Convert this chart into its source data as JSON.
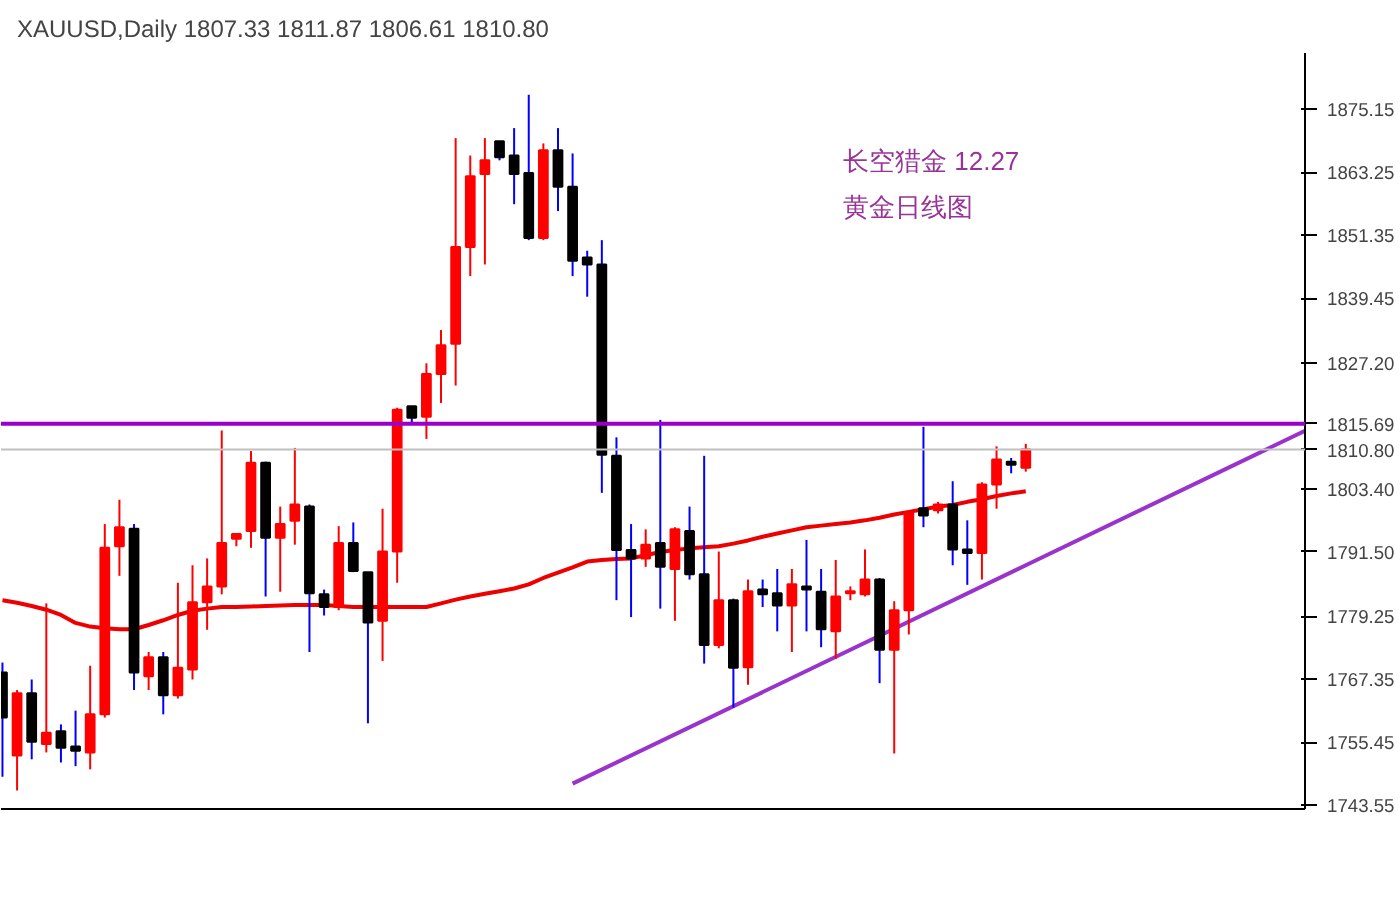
{
  "chart_data": {
    "type": "candlestick",
    "title": "XAUUSD,Daily  1807.33 1811.87 1806.61 1810.80",
    "annotations": [
      "长空猎金  12.27",
      "黄金日线图"
    ],
    "categories": [
      null,
      null,
      null,
      null,
      null,
      null,
      null,
      null,
      null,
      null,
      null,
      null,
      null,
      null,
      null,
      null,
      null,
      null,
      null,
      null,
      null,
      null,
      null,
      null,
      null,
      null,
      null,
      null,
      null,
      null,
      null,
      null,
      null,
      null,
      null,
      null,
      null,
      null,
      null,
      null,
      null,
      null,
      null,
      null,
      null,
      null,
      null,
      null,
      null,
      null,
      null,
      null,
      null,
      null,
      null,
      null,
      null,
      null,
      null,
      null,
      null,
      null,
      null,
      null,
      null,
      null,
      null,
      null,
      null,
      null,
      null
    ],
    "ohlc": [
      [
        1768.6,
        1770.5,
        1748.9,
        1760.1
      ],
      [
        1752.9,
        1765.3,
        1746.3,
        1764.7
      ],
      [
        1764.7,
        1767.3,
        1752.2,
        1755.5
      ],
      [
        1755.1,
        1781.7,
        1753.5,
        1757.2
      ],
      [
        1757.5,
        1758.8,
        1751.6,
        1754.4
      ],
      [
        1754.6,
        1761.4,
        1750.9,
        1753.8
      ],
      [
        1753.5,
        1769.9,
        1750.3,
        1760.7
      ],
      [
        1760.7,
        1796.7,
        1760.1,
        1792.2
      ],
      [
        1792.5,
        1801.3,
        1786.9,
        1796.1
      ],
      [
        1795.8,
        1796.7,
        1765.3,
        1768.6
      ],
      [
        1767.9,
        1772.5,
        1765.3,
        1771.5
      ],
      [
        1771.5,
        1772.5,
        1760.7,
        1764.3
      ],
      [
        1764.3,
        1785.6,
        1763.7,
        1769.5
      ],
      [
        1769.2,
        1788.9,
        1767.3,
        1781.9
      ],
      [
        1781.9,
        1790.2,
        1776.7,
        1784.9
      ],
      [
        1784.9,
        1814.4,
        1783.4,
        1793.1
      ],
      [
        1793.9,
        1795.0,
        1792.5,
        1794.8
      ],
      [
        1795.4,
        1810.5,
        1792.2,
        1808.3
      ],
      [
        1808.3,
        1808.5,
        1783.0,
        1794.1
      ],
      [
        1794.1,
        1800.0,
        1783.9,
        1796.7
      ],
      [
        1797.3,
        1811.1,
        1792.8,
        1800.4
      ],
      [
        1800.0,
        1800.4,
        1772.5,
        1783.6
      ],
      [
        1783.4,
        1784.3,
        1779.4,
        1781.0
      ],
      [
        1781.0,
        1796.3,
        1780.4,
        1793.1
      ],
      [
        1793.1,
        1797.0,
        1787.6,
        1787.8
      ],
      [
        1787.6,
        1787.6,
        1759.0,
        1778.1
      ],
      [
        1778.4,
        1799.6,
        1770.8,
        1791.5
      ],
      [
        1791.5,
        1818.7,
        1785.6,
        1818.3
      ],
      [
        1819.0,
        1819.0,
        1815.5,
        1816.8
      ],
      [
        1817.0,
        1827.1,
        1812.8,
        1825.1
      ],
      [
        1825.1,
        1833.4,
        1819.6,
        1830.5
      ],
      [
        1830.8,
        1869.7,
        1822.9,
        1849.1
      ],
      [
        1849.1,
        1866.4,
        1843.6,
        1862.5
      ],
      [
        1862.9,
        1869.7,
        1845.8,
        1865.5
      ],
      [
        1869.1,
        1869.1,
        1865.5,
        1866.1
      ],
      [
        1866.4,
        1871.6,
        1857.2,
        1862.9
      ],
      [
        1863.1,
        1877.9,
        1850.4,
        1850.8
      ],
      [
        1850.8,
        1868.7,
        1850.4,
        1867.4
      ],
      [
        1867.4,
        1871.6,
        1855.9,
        1860.5
      ],
      [
        1860.5,
        1866.8,
        1843.6,
        1846.5
      ],
      [
        1847.1,
        1848.4,
        1839.7,
        1845.8
      ],
      [
        1845.8,
        1850.4,
        1802.6,
        1809.8
      ],
      [
        1809.6,
        1813.1,
        1782.3,
        1791.8
      ],
      [
        1791.8,
        1796.7,
        1779.1,
        1790.2
      ],
      [
        1790.2,
        1795.7,
        1788.6,
        1792.8
      ],
      [
        1793.1,
        1816.4,
        1780.7,
        1788.6
      ],
      [
        1788.2,
        1796.1,
        1778.4,
        1795.7
      ],
      [
        1795.4,
        1800.0,
        1786.2,
        1787.2
      ],
      [
        1787.2,
        1809.6,
        1770.3,
        1773.8
      ],
      [
        1773.8,
        1791.5,
        1773.2,
        1782.3
      ],
      [
        1782.3,
        1782.6,
        1762.0,
        1769.5
      ],
      [
        1769.6,
        1786.2,
        1766.3,
        1784.0
      ],
      [
        1784.3,
        1786.2,
        1781.0,
        1783.4
      ],
      [
        1783.6,
        1788.2,
        1776.4,
        1781.3
      ],
      [
        1781.3,
        1788.2,
        1772.5,
        1785.3
      ],
      [
        1784.9,
        1793.7,
        1776.4,
        1784.3
      ],
      [
        1783.9,
        1788.2,
        1773.4,
        1776.8
      ],
      [
        1776.4,
        1789.9,
        1771.2,
        1783.0
      ],
      [
        1783.6,
        1784.9,
        1782.3,
        1784.0
      ],
      [
        1783.4,
        1791.9,
        1783.0,
        1786.2
      ],
      [
        1786.2,
        1786.5,
        1766.6,
        1772.9
      ],
      [
        1772.9,
        1782.1,
        1753.3,
        1780.4
      ],
      [
        1780.4,
        1799.3,
        1775.8,
        1798.7
      ],
      [
        1799.7,
        1815.1,
        1796.1,
        1798.3
      ],
      [
        1799.3,
        1800.9,
        1798.7,
        1800.4
      ],
      [
        1800.4,
        1804.8,
        1788.9,
        1791.9
      ],
      [
        1791.9,
        1797.4,
        1785.2,
        1791.2
      ],
      [
        1791.2,
        1804.6,
        1786.2,
        1804.2
      ],
      [
        1804.2,
        1811.4,
        1799.6,
        1808.9
      ],
      [
        1808.5,
        1809.2,
        1806.3,
        1807.9
      ],
      [
        1807.33,
        1811.87,
        1806.61,
        1810.8
      ]
    ],
    "colors": [
      "#000000",
      "#ff0000",
      "#000000",
      "#ff0000",
      "#000000",
      "#000000",
      "#ff0000",
      "#ff0000",
      "#ff0000",
      "#000000",
      "#ff0000",
      "#000000",
      "#ff0000",
      "#ff0000",
      "#ff0000",
      "#ff0000",
      "#ff0000",
      "#ff0000",
      "#000000",
      "#ff0000",
      "#ff0000",
      "#000000",
      "#000000",
      "#ff0000",
      "#000000",
      "#000000",
      "#ff0000",
      "#ff0000",
      "#000000",
      "#ff0000",
      "#ff0000",
      "#ff0000",
      "#ff0000",
      "#ff0000",
      "#000000",
      "#000000",
      "#000000",
      "#ff0000",
      "#000000",
      "#000000",
      "#000000",
      "#000000",
      "#000000",
      "#000000",
      "#ff0000",
      "#000000",
      "#ff0000",
      "#000000",
      "#000000",
      "#ff0000",
      "#000000",
      "#ff0000",
      "#000000",
      "#000000",
      "#ff0000",
      "#000000",
      "#000000",
      "#ff0000",
      "#ff0000",
      "#ff0000",
      "#000000",
      "#ff0000",
      "#ff0000",
      "#000000",
      "#ff0000",
      "#000000",
      "#000000",
      "#ff0000",
      "#ff0000",
      "#000000",
      "#ff0000"
    ],
    "series": [
      {
        "type": "line",
        "color": "#ee0000",
        "values": [
          1782.3,
          1781.8,
          1781.2,
          1780.5,
          1779.5,
          1778.0,
          1777.3,
          1777.0,
          1776.8,
          1776.8,
          1777.6,
          1778.5,
          1779.5,
          1780.3,
          1780.7,
          1781.0,
          1781.0,
          1781.1,
          1781.2,
          1781.3,
          1781.4,
          1781.4,
          1781.4,
          1781.2,
          1781.0,
          1781.0,
          1781.0,
          1781.0,
          1781.0,
          1781.0,
          1781.7,
          1782.4,
          1783.0,
          1783.5,
          1784.0,
          1784.5,
          1785.3,
          1786.5,
          1787.5,
          1788.5,
          1789.6,
          1789.9,
          1790.1,
          1790.2,
          1790.8,
          1791.4,
          1791.8,
          1792.1,
          1792.3,
          1792.5,
          1793.0,
          1793.6,
          1794.3,
          1794.9,
          1795.5,
          1796.1,
          1796.4,
          1796.7,
          1797.0,
          1797.4,
          1797.9,
          1798.5,
          1799.0,
          1799.5,
          1800.0,
          1800.3,
          1800.9,
          1801.4,
          1802.0,
          1802.5,
          1802.9
        ]
      },
      {
        "type": "line",
        "color": "#9933cc",
        "values": [
          null,
          null,
          null,
          null,
          null,
          null,
          null,
          null,
          null,
          null,
          null,
          null,
          null,
          null,
          null,
          null,
          null,
          null,
          null,
          null,
          null,
          null,
          null,
          null,
          null,
          null,
          null,
          null,
          null,
          null,
          null,
          null,
          null,
          null,
          null,
          null,
          null,
          null,
          null,
          1747.6,
          null,
          null,
          null,
          null,
          null,
          null,
          null,
          null,
          null,
          null,
          null,
          null,
          null,
          null,
          null,
          null,
          null,
          null,
          null,
          null,
          null,
          null,
          null,
          null,
          null,
          null,
          null,
          null,
          null,
          null,
          1788.9
        ]
      }
    ],
    "ref_lines": [
      {
        "axis": "y",
        "value": 1815.69,
        "label": "1815.69",
        "color": "#9900cc"
      },
      {
        "axis": "y",
        "value": 1810.8,
        "label": "1810.80",
        "color": "#c0c0c0"
      }
    ],
    "ylim": [
      1742.8,
      1885.8
    ],
    "yticks": [
      1875.15,
      1863.25,
      1851.35,
      1839.45,
      {
        "value": 1827.2,
        "label": "1827.20"
      },
      {
        "value": 1803.4,
        "label": "1803.40"
      },
      {
        "value": 1791.5,
        "label": "1791.50"
      },
      1779.25,
      1767.35,
      1755.45,
      1743.55
    ],
    "tick_labels": "y",
    "grid": false
  }
}
